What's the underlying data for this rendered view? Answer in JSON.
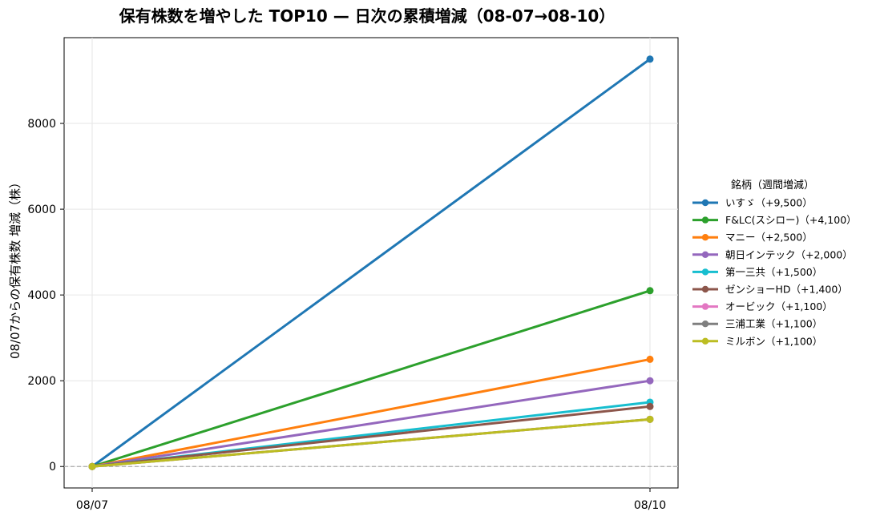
{
  "chart_data": {
    "type": "line",
    "title": "保有株数を増やした TOP10 — 日次の累積増減（08-07→08-10）",
    "xlabel": "",
    "ylabel": "08/07からの保有株数 増減（株）",
    "x": [
      "08/07",
      "08/10"
    ],
    "ylim": [
      -500,
      10000
    ],
    "yticks": [
      0,
      2000,
      4000,
      6000,
      8000
    ],
    "grid": true,
    "zero_line": true,
    "legend": {
      "title": "銘柄（週間増減）",
      "placement": "right"
    },
    "series": [
      {
        "name": "いすゞ（+9,500）",
        "values": [
          0,
          9500
        ],
        "color": "#1f77b4"
      },
      {
        "name": "F&LC(スシロー)（+4,100）",
        "values": [
          0,
          4100
        ],
        "color": "#2ca02c"
      },
      {
        "name": "マニー（+2,500）",
        "values": [
          0,
          2500
        ],
        "color": "#ff7f0e"
      },
      {
        "name": "朝日インテック（+2,000）",
        "values": [
          0,
          2000
        ],
        "color": "#9467bd"
      },
      {
        "name": "第一三共（+1,500）",
        "values": [
          0,
          1500
        ],
        "color": "#17becf"
      },
      {
        "name": "ゼンショーHD（+1,400）",
        "values": [
          0,
          1400
        ],
        "color": "#8c564b"
      },
      {
        "name": "オービック（+1,100）",
        "values": [
          0,
          1100
        ],
        "color": "#e377c2"
      },
      {
        "name": "三浦工業（+1,100）",
        "values": [
          0,
          1100
        ],
        "color": "#7f7f7f"
      },
      {
        "name": "ミルボン（+1,100）",
        "values": [
          0,
          1100
        ],
        "color": "#bcbd22"
      }
    ]
  }
}
